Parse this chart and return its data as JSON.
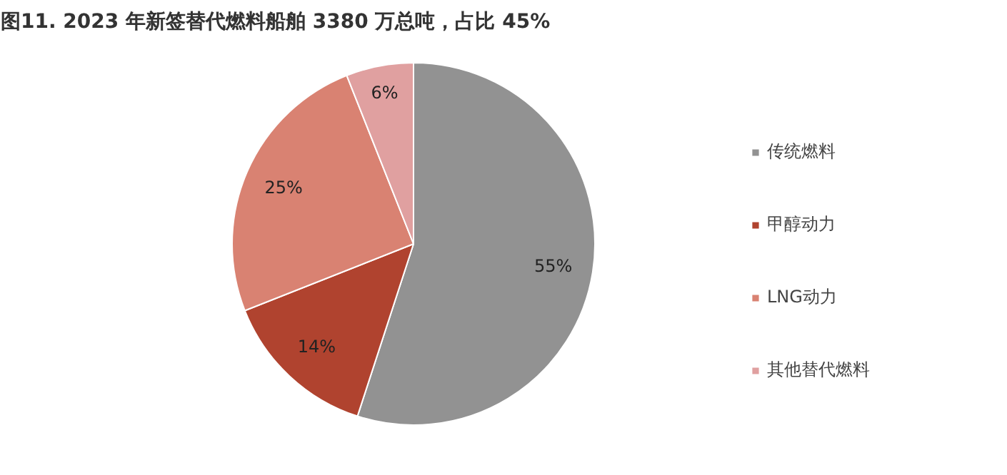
{
  "chart_data": {
    "type": "pie",
    "title": "图11. 2023 年新签替代燃料船舶 3380 万总吨，占比 45%",
    "categories": [
      "传统燃料",
      "甲醇动力",
      "LNG动力",
      "其他替代燃料"
    ],
    "values": [
      55,
      14,
      25,
      6
    ],
    "colors": [
      "#929292",
      "#b0432f",
      "#d98272",
      "#e0a0a0"
    ],
    "value_labels": [
      "55%",
      "14%",
      "25%",
      "6%"
    ],
    "legend": "right"
  }
}
